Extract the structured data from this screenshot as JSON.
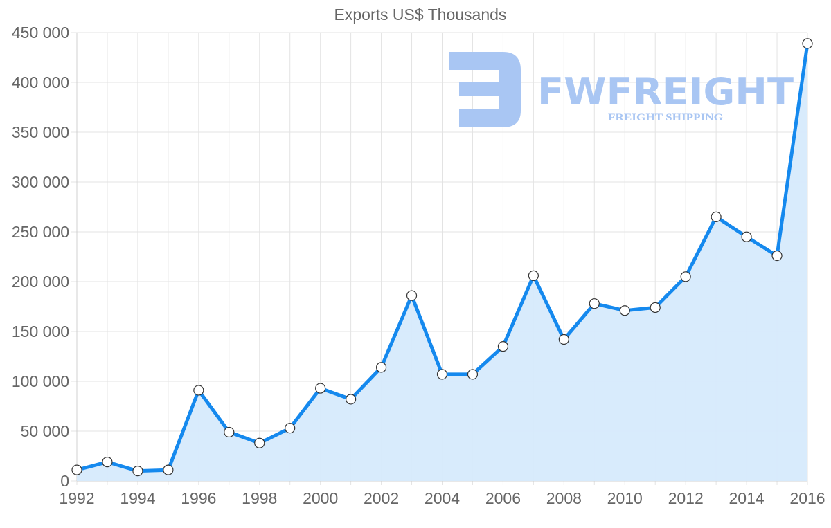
{
  "chart_data": {
    "type": "area",
    "title": "Exports US$ Thousands",
    "xlabel": "",
    "ylabel": "",
    "x": [
      1992,
      1993,
      1994,
      1995,
      1996,
      1997,
      1998,
      1999,
      2000,
      2001,
      2002,
      2003,
      2004,
      2005,
      2006,
      2007,
      2008,
      2009,
      2010,
      2011,
      2012,
      2013,
      2014,
      2015,
      2016
    ],
    "series": [
      {
        "name": "Exports US$ Thousands",
        "values": [
          11000,
          19000,
          10000,
          11000,
          91000,
          49000,
          38000,
          53000,
          93000,
          82000,
          114000,
          186000,
          107000,
          107000,
          135000,
          206000,
          142000,
          178000,
          171000,
          174000,
          205000,
          265000,
          245000,
          226000,
          439000
        ]
      }
    ],
    "ylim": [
      0,
      450000
    ],
    "yticks": [
      "0",
      "50 000",
      "100 000",
      "150 000",
      "200 000",
      "250 000",
      "300 000",
      "350 000",
      "400 000",
      "450 000"
    ],
    "xticks": [
      "1992",
      "1994",
      "1996",
      "1998",
      "2000",
      "2002",
      "2004",
      "2006",
      "2008",
      "2010",
      "2012",
      "2014",
      "2016"
    ],
    "grid": true,
    "legend": "none",
    "line_color": "#1589ee",
    "fill_color": "#d6eafc"
  },
  "watermark": {
    "brand": "FWFREIGHT",
    "tagline": "FREIGHT SHIPPING",
    "color": "#a9c6f3"
  }
}
